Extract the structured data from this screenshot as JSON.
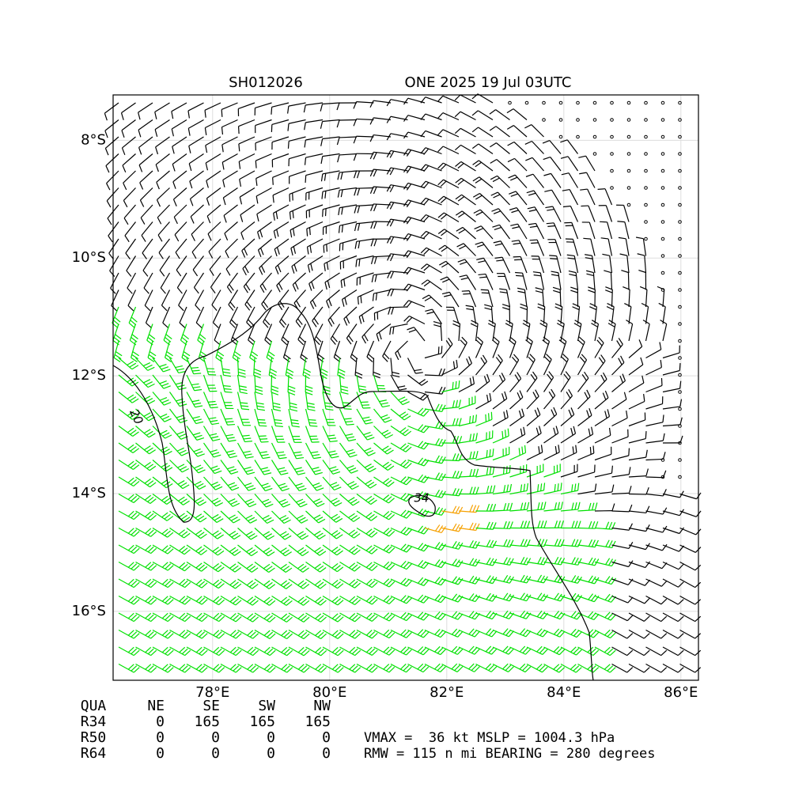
{
  "title": {
    "left": "SH012026",
    "right": "ONE 2025 19 Jul 03UTC"
  },
  "map": {
    "xlim": [
      76.3,
      86.3
    ],
    "ylim": [
      -17.17,
      -7.23
    ],
    "xticks": [
      {
        "value": 78,
        "label": "78°E"
      },
      {
        "value": 80,
        "label": "80°E"
      },
      {
        "value": 82,
        "label": "82°E"
      },
      {
        "value": 84,
        "label": "84°E"
      },
      {
        "value": 86,
        "label": "86°E"
      }
    ],
    "yticks": [
      {
        "value": -8,
        "label": "8°S"
      },
      {
        "value": -10,
        "label": "10°S"
      },
      {
        "value": -12,
        "label": "12°S"
      },
      {
        "value": -14,
        "label": "14°S"
      },
      {
        "value": -16,
        "label": "16°S"
      }
    ],
    "contour_labels": [
      20,
      34
    ]
  },
  "table": {
    "header": [
      "QUA",
      "NE",
      "SE",
      "SW",
      "NW"
    ],
    "rows": [
      [
        "R34",
        0,
        165,
        165,
        165
      ],
      [
        "R50",
        0,
        0,
        0,
        0
      ],
      [
        "R64",
        0,
        0,
        0,
        0
      ]
    ]
  },
  "info": [
    "VMAX =  36 kt MSLP = 1004.3 hPa",
    "RMW = 115 n mi BEARING = 280 degrees"
  ]
}
